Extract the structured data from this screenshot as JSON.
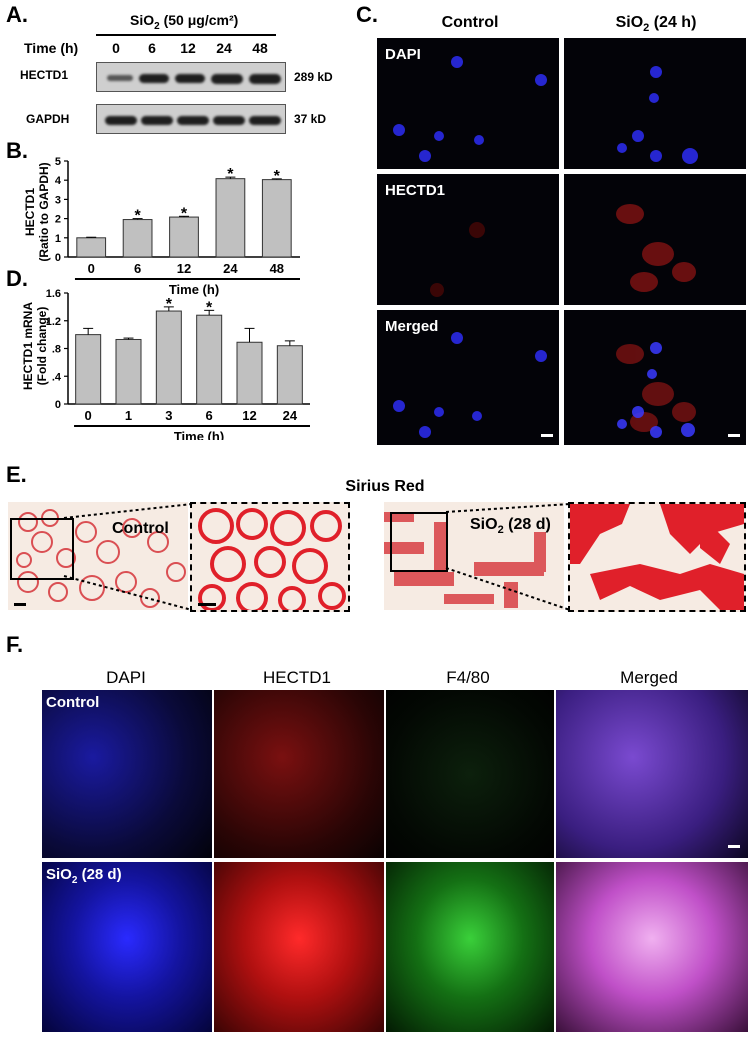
{
  "panelA": {
    "label": "A.",
    "treatment_pre": "SiO",
    "treatment_sub": "2",
    "treatment_post": " (50 μg/cm²)",
    "time_label": "Time (h)",
    "times": [
      "0",
      "6",
      "12",
      "24",
      "48"
    ],
    "rows": [
      {
        "name": "HECTD1",
        "size": "289 kD"
      },
      {
        "name": "GAPDH",
        "size": "37 kD"
      }
    ]
  },
  "panelB": {
    "label": "B.",
    "ylabel": "HECTD1\n(Ratio to GAPDH)",
    "xlabel": "Time (h)"
  },
  "panelD": {
    "label": "D.",
    "ylabel": "HECTD1 mRNA\n(Fold change)",
    "xlabel": "Time (h)"
  },
  "chart_data": [
    {
      "type": "bar",
      "panel": "B",
      "categories": [
        "0",
        "6",
        "12",
        "24",
        "48"
      ],
      "values": [
        1.0,
        1.95,
        2.08,
        4.08,
        4.03
      ],
      "errors": [
        0.03,
        0.05,
        0.04,
        0.08,
        0.04
      ],
      "significant": [
        false,
        true,
        true,
        true,
        true
      ],
      "ylim": [
        0,
        5
      ],
      "yticks": [
        "0",
        "1",
        "2",
        "3",
        "4",
        "5"
      ],
      "xlabel": "Time (h)",
      "ylabel": "HECTD1 (Ratio to GAPDH)",
      "bar_color": "#c0c0c0"
    },
    {
      "type": "bar",
      "panel": "D",
      "categories": [
        "0",
        "1",
        "3",
        "6",
        "12",
        "24"
      ],
      "values": [
        1.0,
        0.93,
        1.34,
        1.28,
        0.89,
        0.84
      ],
      "errors": [
        0.09,
        0.02,
        0.06,
        0.07,
        0.2,
        0.07
      ],
      "significant": [
        false,
        false,
        true,
        true,
        false,
        false
      ],
      "ylim": [
        0,
        1.6
      ],
      "yticks": [
        "0",
        ".4",
        ".8",
        "1.2",
        "1.6"
      ],
      "xlabel": "Time (h)",
      "ylabel": "HECTD1 mRNA (Fold change)",
      "bar_color": "#c0c0c0"
    }
  ],
  "panelC": {
    "label": "C.",
    "col1": "Control",
    "col2_pre": "SiO",
    "col2_sub": "2",
    "col2_post": " (24 h)",
    "rows": [
      "DAPI",
      "HECTD1",
      "Merged"
    ]
  },
  "panelE": {
    "label": "E.",
    "title": "Sirius Red",
    "control": "Control",
    "sio2_pre": "SiO",
    "sio2_sub": "2",
    "sio2_post": " (28 d)"
  },
  "panelF": {
    "label": "F.",
    "columns": [
      "DAPI",
      "HECTD1",
      "F4/80",
      "Merged"
    ],
    "row1": "Control",
    "row2_pre": "SiO",
    "row2_sub": "2",
    "row2_post": " (28 d)"
  },
  "star": "*",
  "colors": {
    "dapi": "#1a1aff",
    "hectd1": "#ff1a1a",
    "f480": "#1fc41f",
    "merged": "#d070ff",
    "sirius": "#e0202a"
  }
}
